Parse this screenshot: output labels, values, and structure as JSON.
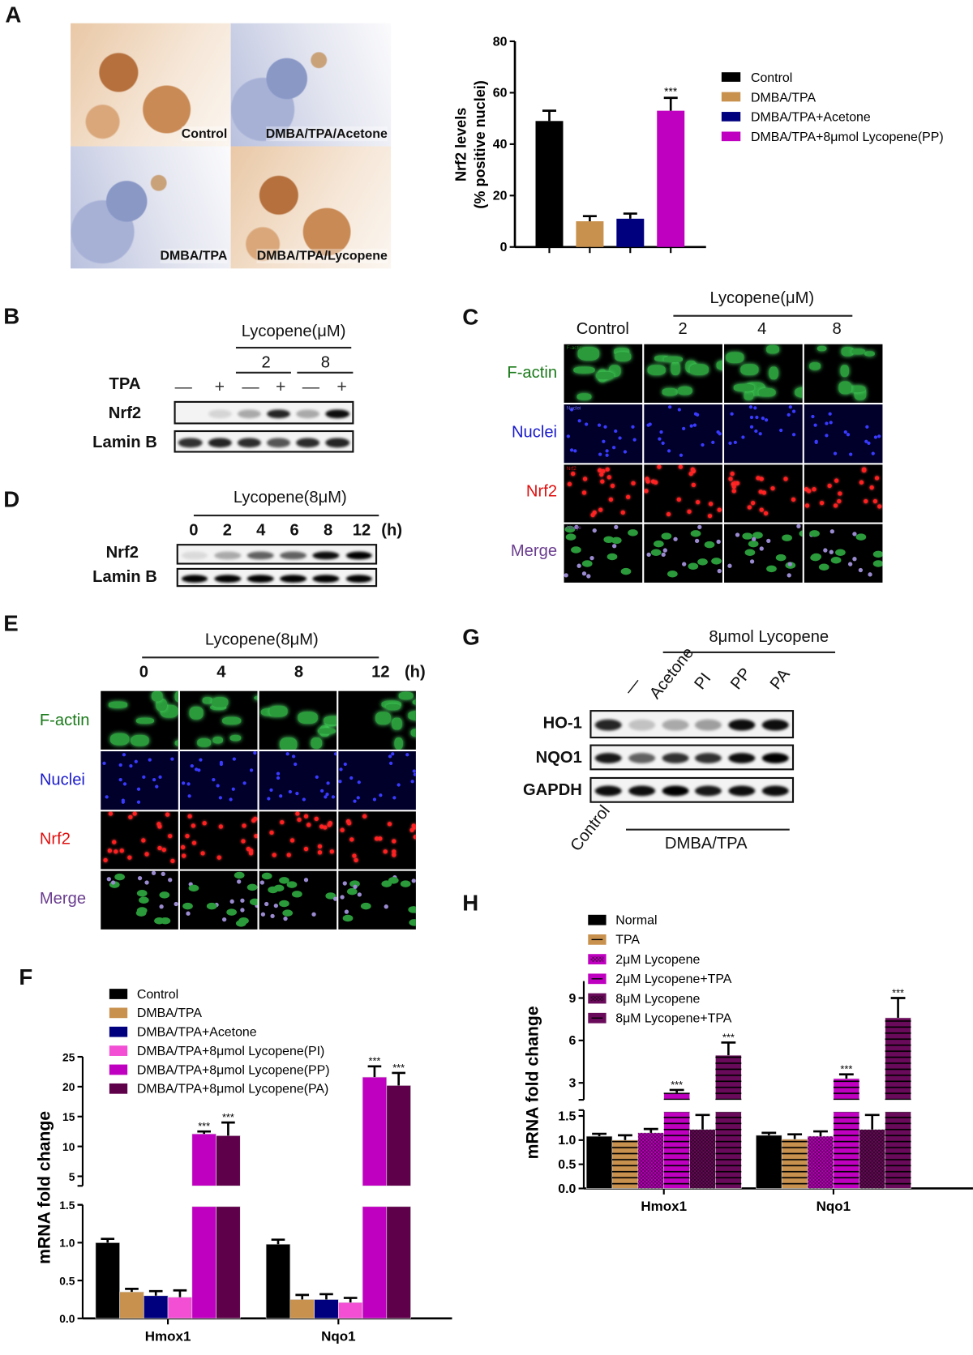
{
  "panel_labels": {
    "A": "A",
    "B": "B",
    "C": "C",
    "D": "D",
    "E": "E",
    "F": "F",
    "G": "G",
    "H": "H"
  },
  "colors": {
    "control": "#000000",
    "dmba": "#c8914e",
    "acetone": "#00007f",
    "pi": "#f24fd4",
    "pp": "#c000c0",
    "pa": "#5e004a",
    "lyco8": "#6a0a5a",
    "fitc": "#2fb84a",
    "dapi": "#2020ff",
    "nrf2": "#ff1a1a",
    "merge": "#6a3d8f"
  },
  "panel_a": {
    "histology": [
      {
        "label": "Control",
        "stain": "brown"
      },
      {
        "label": "DMBA/TPA/Acetone",
        "stain": "blue"
      },
      {
        "label": "DMBA/TPA",
        "stain": "blue"
      },
      {
        "label": "DMBA/TPA/Lycopene",
        "stain": "brown"
      }
    ]
  },
  "panel_b": {
    "treatment_header": "Lycopene(μM)",
    "doses": [
      "2",
      "8"
    ],
    "tpa_label": "TPA",
    "tpa_signs": [
      "—",
      "+",
      "—",
      "+",
      "—",
      "+"
    ],
    "rows": [
      {
        "label": "Nrf2",
        "band_intensity": [
          0.0,
          0.12,
          0.3,
          0.85,
          0.3,
          0.95
        ]
      },
      {
        "label": "Lamin B",
        "band_intensity": [
          0.8,
          0.85,
          0.82,
          0.65,
          0.82,
          0.85
        ]
      }
    ]
  },
  "panel_c": {
    "treatment_header": "Lycopene(μM)",
    "columns": [
      "Control",
      "2",
      "4",
      "8"
    ],
    "rows": [
      "F-actin",
      "Nuclei",
      "Nrf2",
      "Merge"
    ],
    "inset_labels": [
      "F-actin",
      "Nuclei",
      "Nrf2",
      "Merge"
    ]
  },
  "panel_d": {
    "treatment_header": "Lycopene(8μM)",
    "timepoints": [
      "0",
      "2",
      "4",
      "6",
      "8",
      "12"
    ],
    "unit": "(h)",
    "rows": [
      {
        "label": "Nrf2",
        "band_intensity": [
          0.1,
          0.3,
          0.6,
          0.6,
          0.95,
          1.0
        ]
      },
      {
        "label": "Lamin B",
        "band_intensity": [
          1,
          1,
          1,
          1,
          1,
          1
        ]
      }
    ]
  },
  "panel_e": {
    "treatment_header": "Lycopene(8μM)",
    "timepoints": [
      "0",
      "4",
      "8",
      "12"
    ],
    "unit": "(h)",
    "rows": [
      "F-actin",
      "Nuclei",
      "Nrf2",
      "Merge"
    ]
  },
  "panel_g": {
    "treatment_header": "8μmol Lycopene",
    "lanes": [
      "—",
      "Acetone",
      "PI",
      "PP",
      "PA"
    ],
    "control_label": "Control",
    "group_label": "DMBA/TPA",
    "rows": [
      {
        "label": "HO-1",
        "band_intensity": [
          0.85,
          0.2,
          0.3,
          0.35,
          0.95,
          0.95
        ]
      },
      {
        "label": "NQO1",
        "band_intensity": [
          0.9,
          0.6,
          0.8,
          0.8,
          0.95,
          1.0
        ]
      },
      {
        "label": "GAPDH",
        "band_intensity": [
          0.95,
          0.95,
          1,
          0.9,
          0.95,
          0.95
        ]
      }
    ]
  },
  "chart_data": [
    {
      "id": "A",
      "type": "bar",
      "ylabel": [
        "Nrf2 levels",
        "(% positive nuclei)"
      ],
      "ylim": [
        0,
        80
      ],
      "yticks": [
        0,
        20,
        40,
        60,
        80
      ],
      "categories": [
        "Control",
        "DMBA/TPA",
        "DMBA/TPA+Acetone",
        "DMBA/TPA+8μmol Lycopene(PP)"
      ],
      "values": [
        49,
        10,
        11,
        53
      ],
      "errors": [
        4,
        2,
        2,
        5
      ],
      "significance": [
        "",
        "",
        "",
        "***"
      ],
      "colors": [
        "#000000",
        "#c8914e",
        "#00007f",
        "#c000c0"
      ],
      "legend": "right"
    },
    {
      "id": "F",
      "type": "bar",
      "ylabel": "mRNA fold change",
      "broken_axis": {
        "lower": [
          0,
          1.5
        ],
        "upper": [
          3.4,
          25
        ]
      },
      "yticks_lower": [
        "0.0",
        "0.5",
        "1.0",
        "1.5"
      ],
      "yticks_upper": [
        "5",
        "10",
        "15",
        "20",
        "25"
      ],
      "categories": [
        "Hmox1",
        "Nqo1"
      ],
      "series": [
        {
          "name": "Control",
          "color": "#000000",
          "pattern": "solid",
          "values": [
            1.0,
            0.98
          ],
          "errors": [
            0.05,
            0.06
          ],
          "sig": [
            "",
            ""
          ]
        },
        {
          "name": "DMBA/TPA",
          "color": "#c8914e",
          "pattern": "solid",
          "values": [
            0.35,
            0.25
          ],
          "errors": [
            0.04,
            0.06
          ],
          "sig": [
            "",
            ""
          ]
        },
        {
          "name": "DMBA/TPA+Acetone",
          "color": "#00007f",
          "pattern": "solid",
          "values": [
            0.3,
            0.25
          ],
          "errors": [
            0.06,
            0.07
          ],
          "sig": [
            "",
            ""
          ]
        },
        {
          "name": "DMBA/TPA+8μmol Lycopene(PI)",
          "color": "#f24fd4",
          "pattern": "solid",
          "values": [
            0.28,
            0.21
          ],
          "errors": [
            0.09,
            0.06
          ],
          "sig": [
            "",
            ""
          ]
        },
        {
          "name": "DMBA/TPA+8μmol Lycopene(PP)",
          "color": "#c000c0",
          "pattern": "solid",
          "values": [
            12.1,
            21.6
          ],
          "errors": [
            0.4,
            1.8
          ],
          "sig": [
            "***",
            "***"
          ]
        },
        {
          "name": "DMBA/TPA+8μmol Lycopene(PA)",
          "color": "#5e004a",
          "pattern": "solid",
          "values": [
            11.8,
            20.2
          ],
          "errors": [
            2.2,
            2.1
          ],
          "sig": [
            "***",
            "***"
          ]
        }
      ],
      "legend": "top-left"
    },
    {
      "id": "H",
      "type": "bar",
      "ylabel": "mRNA fold change",
      "broken_axis": {
        "lower": [
          0,
          1.62
        ],
        "upper": [
          1.8,
          10.2
        ]
      },
      "yticks_lower": [
        "0.0",
        "0.5",
        "1.0",
        "1.5"
      ],
      "yticks_upper": [
        "3",
        "6",
        "9"
      ],
      "categories": [
        "Hmox1",
        "Nqo1"
      ],
      "series": [
        {
          "name": "Normal",
          "color": "#000000",
          "pattern": "solid",
          "values": [
            1.08,
            1.1
          ],
          "errors": [
            0.05,
            0.05
          ],
          "sig": [
            "",
            ""
          ]
        },
        {
          "name": "TPA",
          "color": "#c8914e",
          "pattern": "lines",
          "values": [
            1.0,
            1.02
          ],
          "errors": [
            0.1,
            0.1
          ],
          "sig": [
            "",
            ""
          ]
        },
        {
          "name": "2μM Lycopene",
          "color": "#c000c0",
          "pattern": "check",
          "values": [
            1.15,
            1.08
          ],
          "errors": [
            0.08,
            0.1
          ],
          "sig": [
            "",
            ""
          ]
        },
        {
          "name": "2μM Lycopene+TPA",
          "color": "#c000c0",
          "pattern": "lines",
          "values": [
            2.3,
            3.3
          ],
          "errors": [
            0.2,
            0.3
          ],
          "sig": [
            "***",
            "***"
          ]
        },
        {
          "name": "8μM Lycopene",
          "color": "#6a0a5a",
          "pattern": "check",
          "values": [
            1.22,
            1.22
          ],
          "errors": [
            0.3,
            0.3
          ],
          "sig": [
            "",
            ""
          ]
        },
        {
          "name": "8μM Lycopene+TPA",
          "color": "#6a0a5a",
          "pattern": "lines",
          "values": [
            4.95,
            7.6
          ],
          "errors": [
            0.9,
            1.4
          ],
          "sig": [
            "***",
            "***"
          ]
        }
      ],
      "legend": "top-left"
    }
  ]
}
